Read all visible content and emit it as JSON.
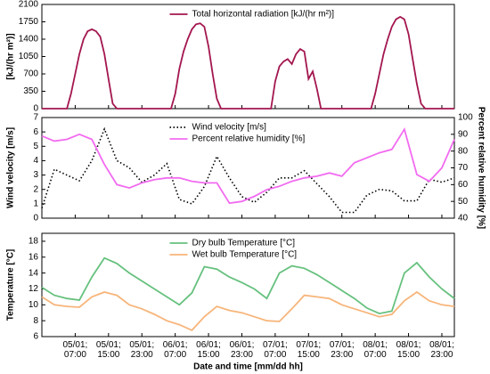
{
  "chart_data": [
    {
      "type": "line",
      "ylabel": "[kJ/(hr m²)]",
      "xlim": [
        0,
        99
      ],
      "ylim": [
        0,
        2100
      ],
      "yticks": [
        0,
        350,
        700,
        1050,
        1400,
        1750,
        2100
      ],
      "x": [
        0,
        6,
        7,
        8,
        9,
        10,
        11,
        12,
        13,
        14,
        15,
        16,
        17,
        18,
        31,
        32,
        33,
        34,
        35,
        36,
        37,
        38,
        39,
        40,
        41,
        42,
        43,
        55,
        56,
        57,
        58,
        59,
        60,
        61,
        62,
        63,
        64,
        65,
        66,
        67,
        79,
        80,
        81,
        82,
        83,
        84,
        85,
        86,
        87,
        88,
        89,
        90,
        91,
        92,
        99
      ],
      "series": [
        {
          "name": "Total horizontal radiation [kJ/(hr m²)]",
          "color": "#a3164f",
          "style": "solid",
          "values": [
            0,
            0,
            300,
            700,
            1100,
            1400,
            1560,
            1600,
            1560,
            1450,
            1100,
            600,
            100,
            0,
            0,
            300,
            800,
            1150,
            1400,
            1600,
            1700,
            1720,
            1650,
            1250,
            700,
            200,
            0,
            0,
            550,
            850,
            950,
            1000,
            900,
            1100,
            1200,
            1150,
            600,
            750,
            400,
            0,
            0,
            300,
            700,
            1100,
            1400,
            1650,
            1800,
            1850,
            1800,
            1500,
            1000,
            500,
            100,
            0,
            0
          ]
        }
      ]
    },
    {
      "type": "line",
      "ylabel": "Wind velocity [m/s]",
      "y2label": "Percent relative humidity [%]",
      "xlim": [
        0,
        99
      ],
      "ylim": [
        0,
        7
      ],
      "yticks": [
        0,
        1,
        2,
        3,
        4,
        5,
        6,
        7
      ],
      "y2lim": [
        40,
        100
      ],
      "y2ticks": [
        40,
        50,
        60,
        70,
        80,
        90,
        100
      ],
      "x": [
        0,
        3,
        6,
        9,
        12,
        15,
        18,
        21,
        24,
        27,
        30,
        33,
        36,
        39,
        42,
        45,
        48,
        51,
        54,
        57,
        60,
        63,
        66,
        69,
        72,
        75,
        78,
        81,
        84,
        87,
        90,
        93,
        96,
        99
      ],
      "series": [
        {
          "name": "Wind velocity [m/s]",
          "color": "#000000",
          "style": "dotted",
          "values": [
            0.7,
            3.4,
            3.0,
            2.6,
            4.0,
            6.2,
            4.0,
            3.5,
            2.5,
            3.0,
            3.8,
            1.3,
            1.0,
            2.2,
            4.3,
            2.8,
            1.5,
            1.1,
            1.8,
            2.8,
            2.8,
            3.3,
            2.4,
            1.5,
            0.4,
            0.4,
            1.6,
            2.0,
            1.9,
            1.2,
            1.2,
            2.7,
            2.5,
            2.8
          ]
        },
        {
          "name": "Percent relative humidity [%]",
          "color": "#f26bf0",
          "style": "solid",
          "axis": "y2",
          "values": [
            89,
            86,
            87,
            90,
            87,
            72,
            60,
            58,
            61,
            63,
            64,
            64,
            62,
            61,
            61,
            49,
            50,
            53,
            57,
            59,
            62,
            64,
            65,
            67,
            65,
            73,
            76,
            79,
            81,
            93,
            66,
            62,
            70,
            87
          ]
        }
      ]
    },
    {
      "type": "line",
      "ylabel": "Temperature [°C]",
      "xlabel": "Date and time [mm/dd hh]",
      "xlim": [
        0,
        99
      ],
      "ylim": [
        6,
        19
      ],
      "yticks": [
        6,
        8,
        10,
        12,
        14,
        16,
        18
      ],
      "xticks": [
        {
          "value": 8,
          "label": "05/01; 07:00"
        },
        {
          "value": 16,
          "label": "05/01; 15:00"
        },
        {
          "value": 24,
          "label": "05/01; 23:00"
        },
        {
          "value": 32,
          "label": "06/01; 07:00"
        },
        {
          "value": 40,
          "label": "06/01; 15:00"
        },
        {
          "value": 48,
          "label": "06/01; 23:00"
        },
        {
          "value": 56,
          "label": "07/01; 07:00"
        },
        {
          "value": 64,
          "label": "07/01; 15:00"
        },
        {
          "value": 72,
          "label": "07/01; 23:00"
        },
        {
          "value": 80,
          "label": "08/01; 07:00"
        },
        {
          "value": 88,
          "label": "08/01; 15:00"
        },
        {
          "value": 96,
          "label": "08/01; 23:00"
        }
      ],
      "x": [
        0,
        3,
        6,
        9,
        12,
        15,
        18,
        21,
        24,
        27,
        30,
        33,
        36,
        39,
        42,
        45,
        48,
        51,
        54,
        57,
        60,
        63,
        66,
        69,
        72,
        75,
        78,
        81,
        84,
        87,
        90,
        93,
        96,
        99
      ],
      "series": [
        {
          "name": "Dry bulb Temperature [°C]",
          "color": "#66c17e",
          "style": "solid",
          "values": [
            12.2,
            11.2,
            10.8,
            10.6,
            13.5,
            15.9,
            15.2,
            14.0,
            13.0,
            12.0,
            11.0,
            10.0,
            11.5,
            14.8,
            14.5,
            13.5,
            12.8,
            12.0,
            10.8,
            14.0,
            14.9,
            14.6,
            13.8,
            12.8,
            11.8,
            10.8,
            9.6,
            8.9,
            9.2,
            14.0,
            15.3,
            13.5,
            12.0,
            10.8
          ]
        },
        {
          "name": "Wet bulb Temperature [°C]",
          "color": "#f7b57a",
          "style": "solid",
          "values": [
            11.0,
            10.0,
            9.8,
            9.7,
            11.0,
            11.6,
            11.2,
            10.0,
            9.5,
            8.8,
            8.0,
            7.5,
            6.8,
            8.5,
            9.8,
            9.3,
            9.0,
            8.5,
            8.0,
            7.9,
            9.5,
            11.2,
            11.0,
            10.8,
            10.0,
            9.5,
            9.0,
            8.5,
            8.8,
            10.5,
            11.6,
            10.5,
            10.0,
            9.8
          ]
        }
      ]
    }
  ]
}
